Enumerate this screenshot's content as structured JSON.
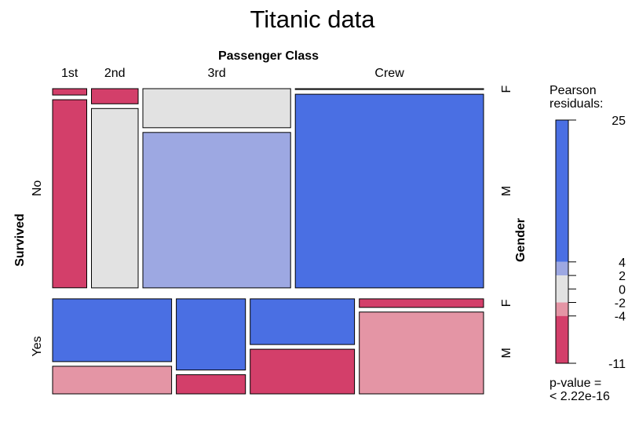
{
  "chart_data": {
    "type": "mosaic",
    "title": "Titanic data",
    "x_variable": "Passenger Class",
    "x_levels": [
      "1st",
      "2nd",
      "3rd",
      "Crew"
    ],
    "y_variable": "Survived",
    "y_levels": [
      "No",
      "Yes"
    ],
    "z_variable": "Gender",
    "z_levels": [
      "F",
      "M"
    ],
    "counts": {
      "No": {
        "1st": {
          "F": 4,
          "M": 118
        },
        "2nd": {
          "F": 13,
          "M": 154
        },
        "3rd": {
          "F": 106,
          "M": 422
        },
        "Crew": {
          "F": 3,
          "M": 670
        }
      },
      "Yes": {
        "1st": {
          "F": 141,
          "M": 62
        },
        "2nd": {
          "F": 93,
          "M": 25
        },
        "3rd": {
          "F": 90,
          "M": 88
        },
        "Crew": {
          "F": 20,
          "M": 192
        }
      }
    },
    "residual_class": {
      "No": {
        "1st": {
          "F": "neg-strong",
          "M": "neg-strong"
        },
        "2nd": {
          "F": "neg-strong",
          "M": "neutral"
        },
        "3rd": {
          "F": "neutral",
          "M": "pos-medium"
        },
        "Crew": {
          "F": "neutral",
          "M": "pos-strong"
        }
      },
      "Yes": {
        "1st": {
          "F": "pos-strong",
          "M": "neg-medium"
        },
        "2nd": {
          "F": "pos-strong",
          "M": "neg-strong"
        },
        "3rd": {
          "F": "pos-strong",
          "M": "neg-strong"
        },
        "Crew": {
          "F": "neg-strong",
          "M": "neg-medium"
        }
      }
    },
    "colors": {
      "pos-strong": "#4a6fe3",
      "pos-medium": "#9da8e2",
      "neutral": "#e2e2e2",
      "neg-medium": "#e495a5",
      "neg-strong": "#d33f6a"
    },
    "legend": {
      "title_line1": "Pearson",
      "title_line2": "residuals:",
      "range": [
        -11,
        25
      ],
      "ticks": [
        25,
        4,
        2,
        0,
        -2,
        -4,
        -11
      ],
      "breaks": [
        {
          "from": 4,
          "to": 25,
          "shade": "pos-strong"
        },
        {
          "from": 2,
          "to": 4,
          "shade": "pos-medium"
        },
        {
          "from": -2,
          "to": 2,
          "shade": "neutral"
        },
        {
          "from": -4,
          "to": -2,
          "shade": "neg-medium"
        },
        {
          "from": -11,
          "to": -4,
          "shade": "neg-strong"
        }
      ],
      "pvalue_line1": "p-value =",
      "pvalue_line2": "< 2.22e-16"
    }
  }
}
